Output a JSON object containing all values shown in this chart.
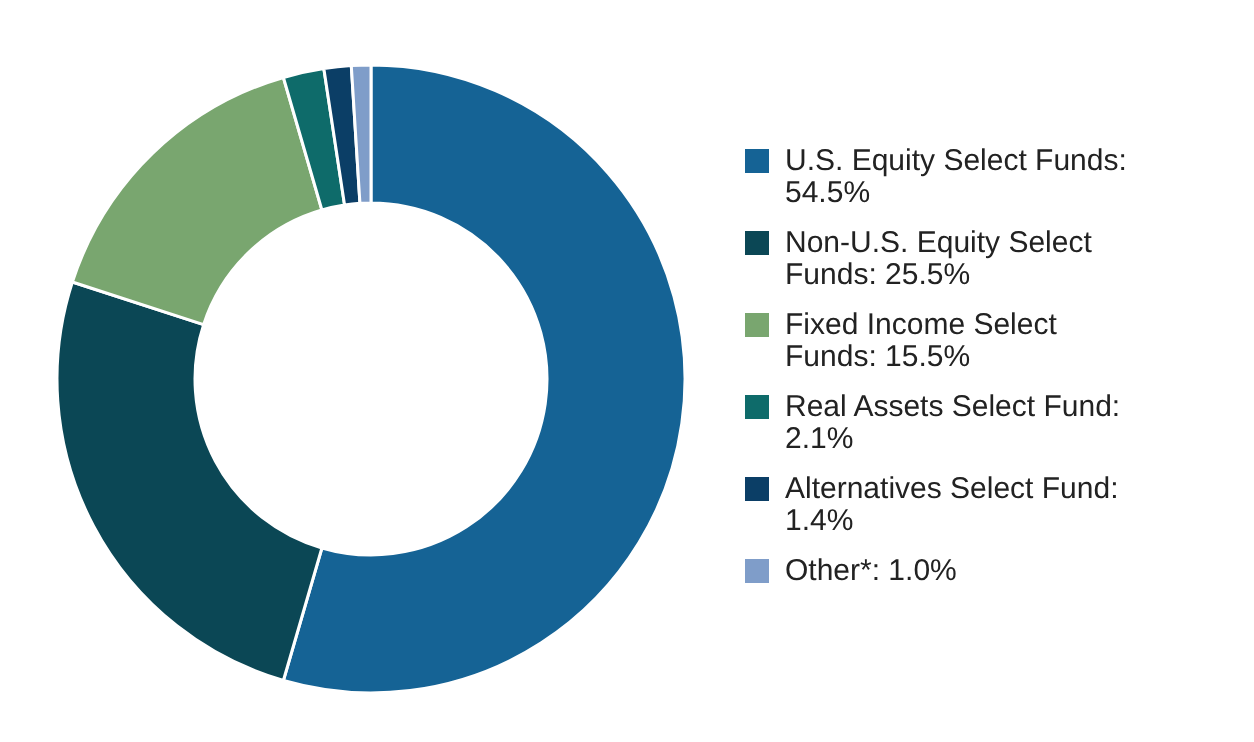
{
  "chart_data": {
    "type": "donut",
    "categories": [
      "U.S. Equity Select Funds: 54.5%",
      "Non-U.S. Equity Select Funds: 25.5%",
      "Fixed Income Select Funds: 15.5%",
      "Real Assets Select Fund: 2.1%",
      "Alternatives Select Fund: 1.4%",
      "Other*: 1.0%"
    ],
    "values": [
      54.5,
      25.5,
      15.5,
      2.1,
      1.4,
      1.0
    ],
    "colors": [
      "#156395",
      "#0b4755",
      "#79a66f",
      "#0e6b6a",
      "#0b3e66",
      "#7f9dc9"
    ],
    "legend": "right"
  }
}
